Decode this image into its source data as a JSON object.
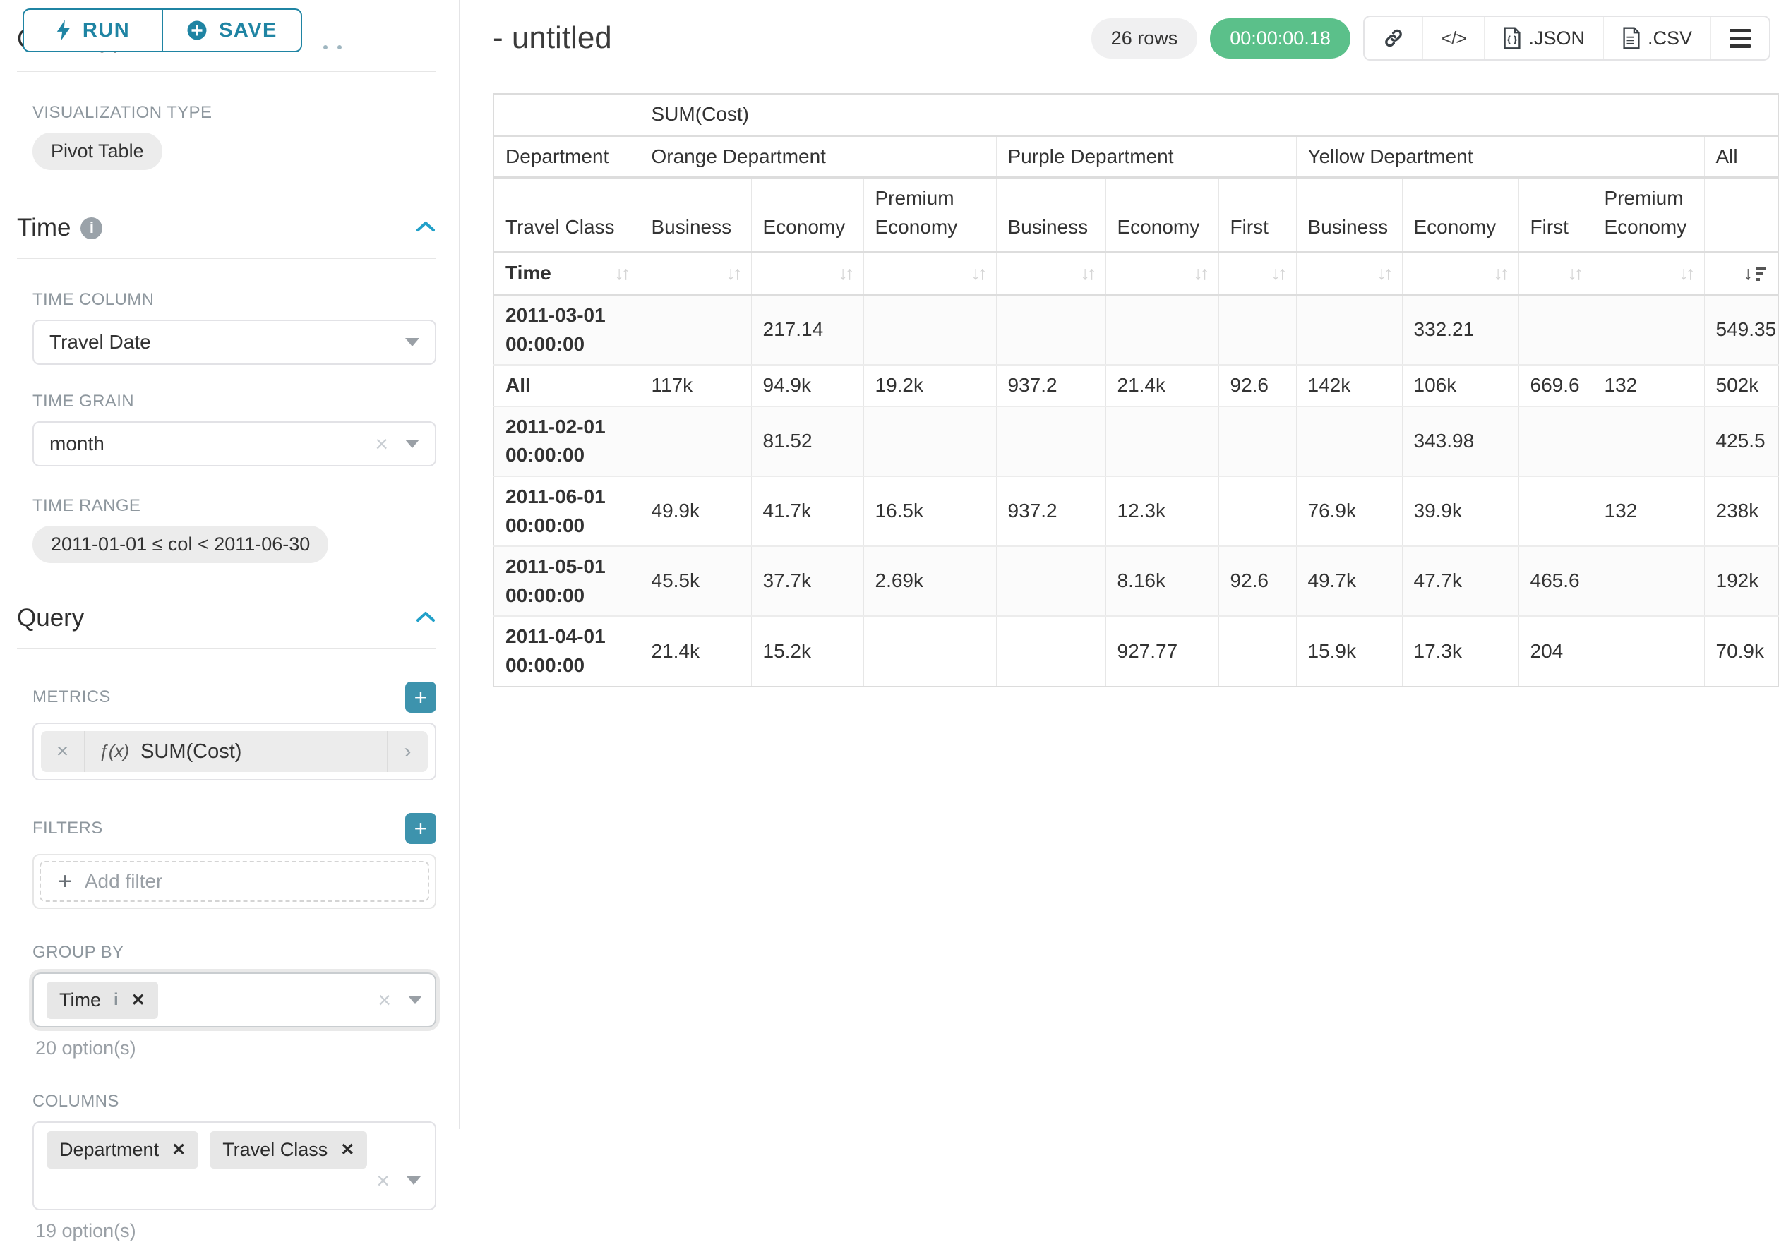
{
  "colors": {
    "accent": "#1f84a3",
    "accent_bright": "#21a0c9",
    "timer_badge": "#5bc08a"
  },
  "sidebar": {
    "run_label": "RUN",
    "save_label": "SAVE",
    "chart_type_heading": "Chart Type",
    "visualization_type_label": "VISUALIZATION TYPE",
    "visualization_type_value": "Pivot Table",
    "time_section": {
      "title": "Time",
      "time_column_label": "TIME COLUMN",
      "time_column_value": "Travel Date",
      "time_grain_label": "TIME GRAIN",
      "time_grain_value": "month",
      "time_range_label": "TIME RANGE",
      "time_range_value": "2011-01-01 ≤ col < 2011-06-30"
    },
    "query_section": {
      "title": "Query",
      "metrics_label": "METRICS",
      "metric_fx": "ƒ(x)",
      "metric_value": "SUM(Cost)",
      "filters_label": "FILTERS",
      "add_filter_label": "Add filter",
      "group_by_label": "GROUP BY",
      "group_by_chips": [
        "Time"
      ],
      "group_by_hint": "20 option(s)",
      "columns_label": "COLUMNS",
      "columns_chips": [
        "Department",
        "Travel Class"
      ],
      "columns_hint": "19 option(s)"
    }
  },
  "header": {
    "title": "- untitled",
    "row_count": "26 rows",
    "timer": "00:00:00.18",
    "toolbar": {
      "icons": [
        "link-icon",
        "code-icon",
        "json-file-icon",
        "csv-file-icon",
        "menu-icon"
      ],
      "json_label": ".JSON",
      "csv_label": ".CSV"
    }
  },
  "pivot": {
    "metric_header": "SUM(Cost)",
    "row_dims": [
      "Department",
      "Travel Class",
      "Time"
    ],
    "col_groups": [
      {
        "label": "Orange Department",
        "cols": [
          "Business",
          "Economy",
          "Premium Economy"
        ]
      },
      {
        "label": "Purple Department",
        "cols": [
          "Business",
          "Economy",
          "First"
        ]
      },
      {
        "label": "Yellow Department",
        "cols": [
          "Business",
          "Economy",
          "First",
          "Premium Economy"
        ]
      },
      {
        "label": "All",
        "cols": [
          ""
        ]
      }
    ],
    "sort_active_column": "All",
    "rows": [
      {
        "label": "2011-03-01 00:00:00",
        "values": [
          "",
          "217.14",
          "",
          "",
          "",
          "",
          "",
          "332.21",
          "",
          "",
          "549.35"
        ]
      },
      {
        "label": "All",
        "values": [
          "117k",
          "94.9k",
          "19.2k",
          "937.2",
          "21.4k",
          "92.6",
          "142k",
          "106k",
          "669.6",
          "132",
          "502k"
        ]
      },
      {
        "label": "2011-02-01 00:00:00",
        "values": [
          "",
          "81.52",
          "",
          "",
          "",
          "",
          "",
          "343.98",
          "",
          "",
          "425.5"
        ]
      },
      {
        "label": "2011-06-01 00:00:00",
        "values": [
          "49.9k",
          "41.7k",
          "16.5k",
          "937.2",
          "12.3k",
          "",
          "76.9k",
          "39.9k",
          "",
          "132",
          "238k"
        ]
      },
      {
        "label": "2011-05-01 00:00:00",
        "values": [
          "45.5k",
          "37.7k",
          "2.69k",
          "",
          "8.16k",
          "92.6",
          "49.7k",
          "47.7k",
          "465.6",
          "",
          "192k"
        ]
      },
      {
        "label": "2011-04-01 00:00:00",
        "values": [
          "21.4k",
          "15.2k",
          "",
          "",
          "927.77",
          "",
          "15.9k",
          "17.3k",
          "204",
          "",
          "70.9k"
        ]
      }
    ]
  }
}
